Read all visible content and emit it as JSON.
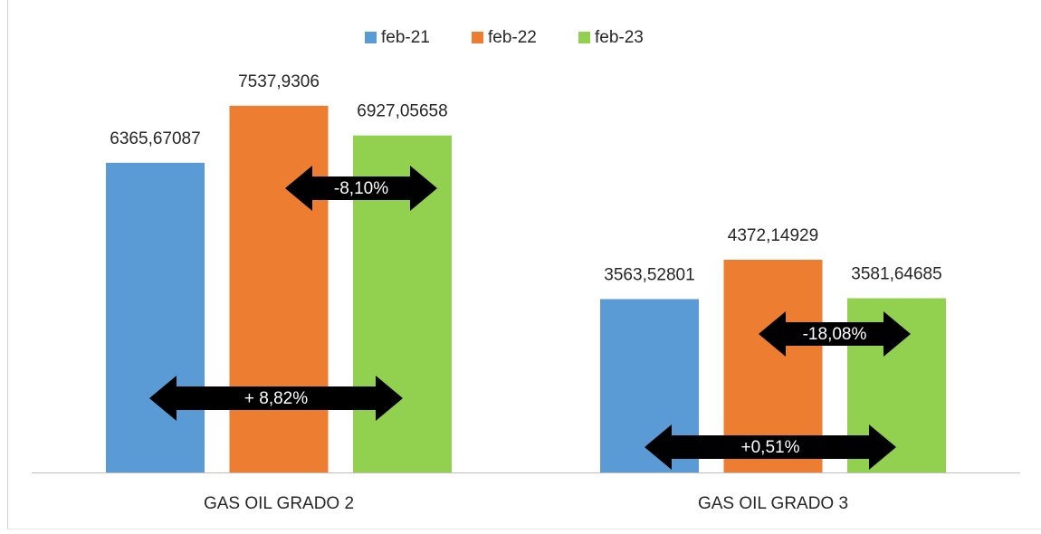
{
  "chart_data": {
    "type": "bar",
    "categories": [
      "GAS OIL GRADO 2",
      "GAS OIL GRADO 3"
    ],
    "series": [
      {
        "name": "feb-21",
        "color": "#5b9bd5",
        "values": [
          6365.67087,
          3563.52801
        ],
        "value_labels": [
          "6365,67087",
          "3563,52801"
        ]
      },
      {
        "name": "feb-22",
        "color": "#ed7d31",
        "values": [
          7537.9306,
          4372.14929
        ],
        "value_labels": [
          "7537,9306",
          "4372,14929"
        ]
      },
      {
        "name": "feb-23",
        "color": "#92d050",
        "values": [
          6927.05658,
          3581.64685
        ],
        "value_labels": [
          "6927,05658",
          "3581,64685"
        ]
      }
    ],
    "ylim": [
      0,
      8000
    ],
    "legend": "top",
    "annotations": [
      "-8,10%",
      "+ 8,82%",
      "-18,08%",
      "+0,51%"
    ]
  }
}
